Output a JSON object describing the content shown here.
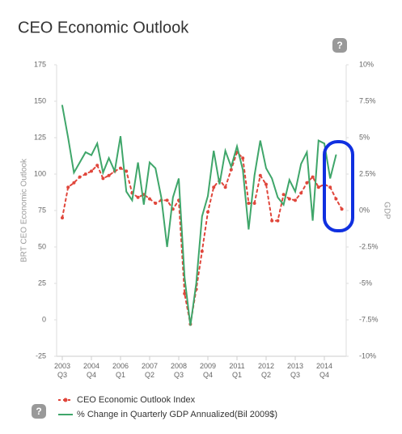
{
  "chart_data": {
    "type": "line",
    "title": "CEO Economic Outlook",
    "y_label": "BRT CEO Economic Outlook",
    "y2_label": "GDP",
    "categories": [
      "2003 Q3",
      null,
      null,
      null,
      null,
      "2004 Q4",
      null,
      null,
      null,
      null,
      "2006 Q1",
      null,
      null,
      null,
      null,
      "2007 Q2",
      null,
      null,
      null,
      null,
      "2008 Q3",
      null,
      null,
      null,
      null,
      "2009 Q4",
      null,
      null,
      null,
      null,
      "2011 Q1",
      null,
      null,
      null,
      null,
      "2012 Q2",
      null,
      null,
      null,
      null,
      "2013 Q3",
      null,
      null,
      null,
      null,
      "2014 Q4",
      null,
      null,
      null
    ],
    "ylim": [
      -25,
      175
    ],
    "yticks": [
      -25,
      0,
      25,
      50,
      75,
      100,
      125,
      150,
      175
    ],
    "y2lim": [
      -10,
      10
    ],
    "y2ticks": [
      {
        "value": -10,
        "label": "-10%"
      },
      {
        "value": -7.5,
        "label": "-7.5%"
      },
      {
        "value": -5,
        "label": "-5%"
      },
      {
        "value": -2.5,
        "label": "-2.5%"
      },
      {
        "value": 0,
        "label": "0%"
      },
      {
        "value": 2.5,
        "label": "2.5%"
      },
      {
        "value": 5,
        "label": "5%"
      },
      {
        "value": 7.5,
        "label": "7.5%"
      },
      {
        "value": 10,
        "label": "10%"
      }
    ],
    "series": [
      {
        "name": "CEO Economic Outlook Index",
        "color": "#e0463b",
        "dashed": true,
        "values": [
          70,
          91,
          94,
          98,
          100,
          102,
          106,
          97,
          99,
          102,
          104,
          102,
          87,
          84,
          86,
          83,
          80,
          82,
          82,
          76,
          82,
          18,
          -3,
          21,
          47,
          74,
          91,
          96,
          91,
          103,
          115,
          111,
          80,
          80,
          99,
          93,
          68,
          68,
          86,
          83,
          82,
          87,
          94,
          98,
          91,
          93,
          91,
          83,
          76
        ]
      },
      {
        "name": "% Change in Quarterly GDP Annualized(Bil 2009$)",
        "color": "#3fa66a",
        "axis": "y2",
        "values": [
          7.2,
          5.0,
          2.6,
          3.3,
          4.0,
          3.8,
          4.6,
          2.6,
          3.6,
          2.7,
          5.1,
          1.3,
          0.7,
          3.3,
          0.4,
          3.3,
          2.9,
          0.9,
          -2.5,
          0.9,
          2.2,
          -4.6,
          -7.9,
          -5.0,
          -0.4,
          1.0,
          4.1,
          1.8,
          4.1,
          3.0,
          4.4,
          2.8,
          -1.3,
          2.4,
          4.8,
          2.9,
          2.2,
          0.9,
          0.4,
          2.1,
          1.3,
          3.2,
          4.0,
          -0.7,
          4.8,
          4.6,
          2.2,
          3.8,
          null
        ]
      }
    ]
  }
}
